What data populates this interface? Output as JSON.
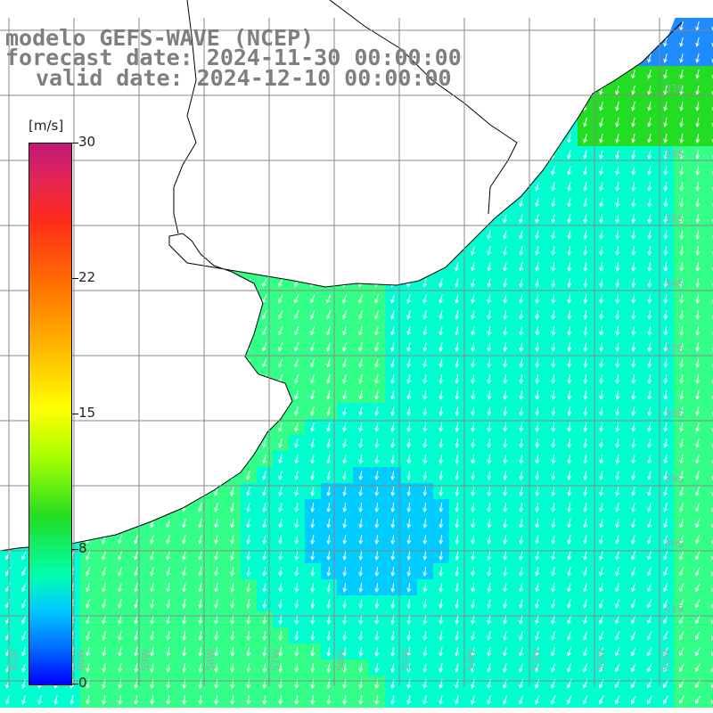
{
  "title": {
    "model": "modelo GEFS-WAVE (NCEP)",
    "forecast": "forecast date: 2024-11-30 00:00:00",
    "valid": "valid date: 2024-12-10 00:00:00"
  },
  "colorbar": {
    "unit": "[m/s]",
    "ticks": [
      "30",
      "22",
      "15",
      "8",
      "0"
    ],
    "colors": [
      "#c2187a",
      "#ff2a1a",
      "#ffa500",
      "#ffff00",
      "#22dd22",
      "#00ffb0",
      "#00ccff",
      "#0070ff",
      "#0000ff"
    ]
  },
  "grid": {
    "lon_labels": [
      "61W",
      "60W",
      "59W",
      "58W",
      "57W",
      "56W",
      "55W",
      "54W",
      "53W",
      "52W",
      "51W"
    ],
    "lat_labels": [
      "33S",
      "34S",
      "35S",
      "36S",
      "37S",
      "38S",
      "39S",
      "40S",
      "41S"
    ]
  },
  "field": {
    "quantity": "wind speed",
    "unit": "m/s",
    "range": [
      0,
      30
    ],
    "land_color": "#ffffff",
    "coast_color": "#000000",
    "grid_color": "#808080"
  }
}
